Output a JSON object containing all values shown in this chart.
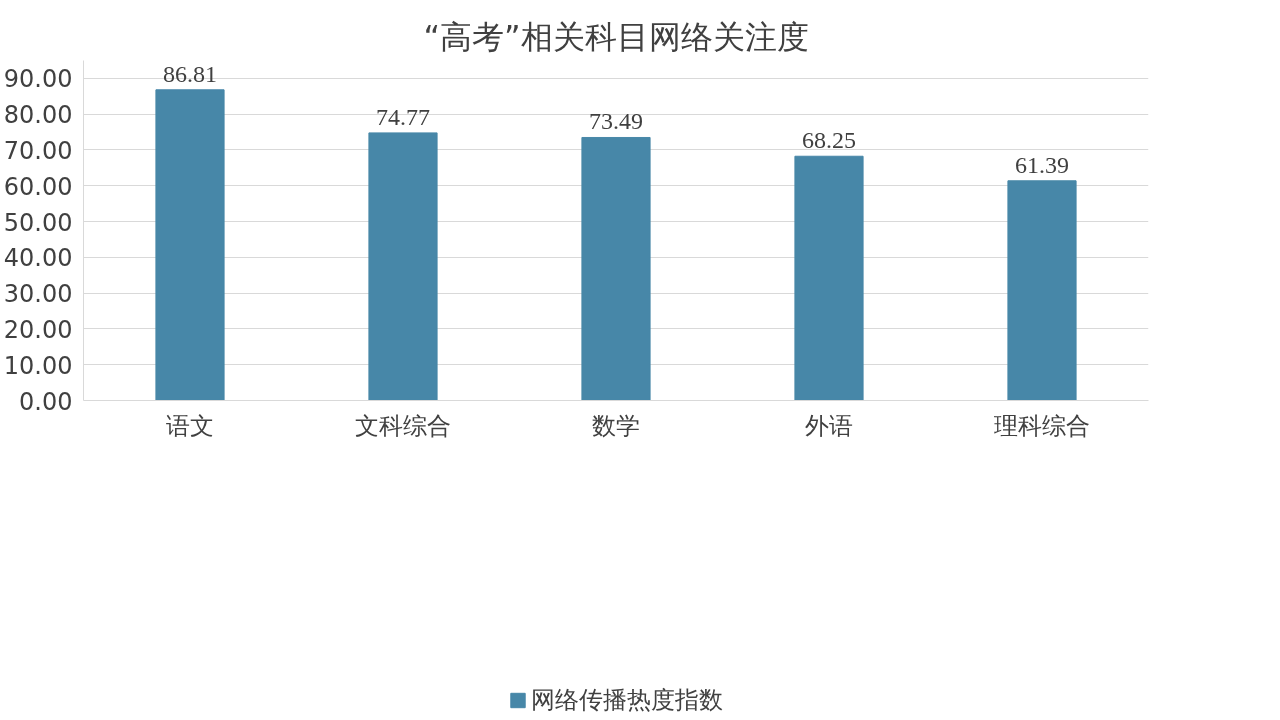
{
  "chart_data": {
    "type": "bar",
    "title": "“高考”相关科目网络关注度",
    "categories": [
      "语文",
      "文科综合",
      "数学",
      "外语",
      "理科综合"
    ],
    "series": [
      {
        "name": "网络传播热度指数",
        "color": "#4787a8",
        "values": [
          86.81,
          74.77,
          73.49,
          68.25,
          61.39
        ]
      }
    ],
    "ylim": [
      0,
      95
    ],
    "yticks": [
      {
        "value": 0,
        "label": "0.00"
      },
      {
        "value": 10,
        "label": "10.00"
      },
      {
        "value": 20,
        "label": "20.00"
      },
      {
        "value": 30,
        "label": "30.00"
      },
      {
        "value": 40,
        "label": "40.00"
      },
      {
        "value": 50,
        "label": "50.00"
      },
      {
        "value": 60,
        "label": "60.00"
      },
      {
        "value": 70,
        "label": "70.00"
      },
      {
        "value": 80,
        "label": "80.00"
      },
      {
        "value": 90,
        "label": "90.00"
      }
    ],
    "grid": "y",
    "legend": "bottom",
    "data_labels": true
  }
}
